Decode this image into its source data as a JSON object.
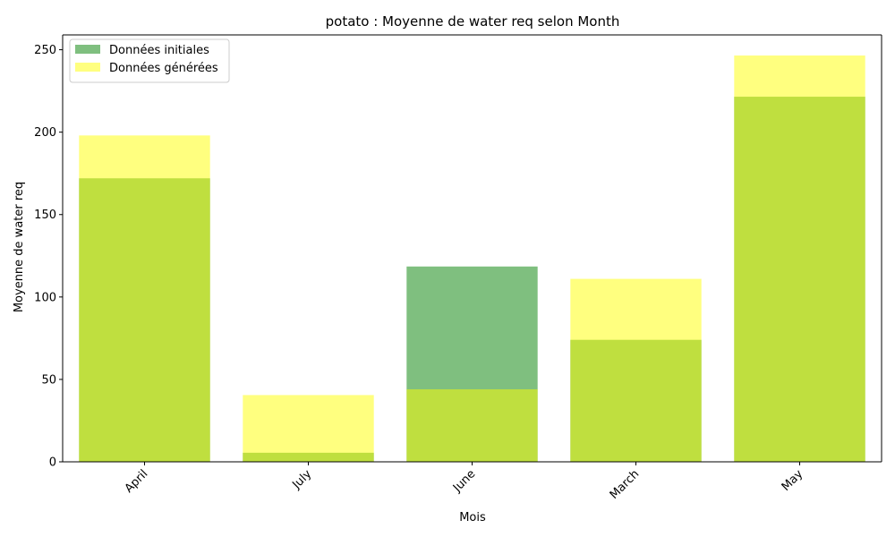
{
  "chart_data": {
    "type": "bar",
    "title": "potato : Moyenne de water req selon Month",
    "xlabel": "Mois",
    "ylabel": "Moyenne de water req",
    "categories": [
      "April",
      "July",
      "June",
      "March",
      "May"
    ],
    "series": [
      {
        "name": "Données initiales",
        "values": [
          172,
          5.5,
          118.5,
          74,
          221.5
        ],
        "color": "#008000",
        "opacity": 0.5
      },
      {
        "name": "Données générées",
        "values": [
          198,
          40.5,
          44,
          111,
          246.5
        ],
        "color": "#ffff00",
        "opacity": 0.5
      }
    ],
    "ylim": [
      0,
      259
    ],
    "yticks": [
      0,
      50,
      100,
      150,
      200,
      250
    ],
    "legend_position": "top-left",
    "grid": false,
    "x_tick_rotation": 45
  }
}
